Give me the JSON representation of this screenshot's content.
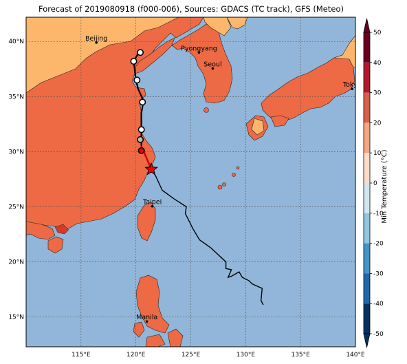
{
  "title": "Forecast of 2019080918 (f000-006), Sources: GDACS (TC track), GFS (Meteo)",
  "map": {
    "lon_range": [
      110,
      140
    ],
    "lat_range": [
      12.3,
      42.2
    ],
    "lon_ticks": [
      "115°E",
      "120°E",
      "125°E",
      "130°E",
      "135°E",
      "140°E"
    ],
    "lat_ticks": [
      "15°N",
      "20°N",
      "25°N",
      "30°N",
      "35°N",
      "40°N"
    ],
    "grid": true
  },
  "cities": [
    {
      "name": "Beijing",
      "lon": 116.4,
      "lat": 39.9
    },
    {
      "name": "Pyongyang",
      "lon": 125.75,
      "lat": 39.0
    },
    {
      "name": "Seoul",
      "lon": 127.0,
      "lat": 37.55
    },
    {
      "name": "Tokyo",
      "lon": 139.7,
      "lat": 35.7
    },
    {
      "name": "Taipei",
      "lon": 121.5,
      "lat": 25.05
    },
    {
      "name": "Manila",
      "lon": 121.0,
      "lat": 14.6
    }
  ],
  "storm": {
    "current_position": {
      "lon": 121.4,
      "lat": 28.4
    },
    "track": [
      [
        131.6,
        16.1
      ],
      [
        131.4,
        16.5
      ],
      [
        131.5,
        17.6
      ],
      [
        130.6,
        18.0
      ],
      [
        130.3,
        18.3
      ],
      [
        129.7,
        18.6
      ],
      [
        129.4,
        19.1
      ],
      [
        128.7,
        18.7
      ],
      [
        128.4,
        18.6
      ],
      [
        128.7,
        19.3
      ],
      [
        128.2,
        19.4
      ],
      [
        128.2,
        20.0
      ],
      [
        126.8,
        21.3
      ],
      [
        125.8,
        22.0
      ],
      [
        125.2,
        23.0
      ],
      [
        124.5,
        24.4
      ],
      [
        124.6,
        25.0
      ],
      [
        123.5,
        25.7
      ],
      [
        122.4,
        26.5
      ],
      [
        121.8,
        27.8
      ],
      [
        121.4,
        28.4
      ]
    ],
    "forecast_track": [
      [
        121.4,
        28.4
      ],
      [
        120.9,
        29.6
      ],
      [
        120.5,
        30.5
      ],
      [
        120.5,
        31.4
      ],
      [
        120.5,
        32.2
      ],
      [
        120.5,
        33.5
      ],
      [
        120.7,
        34.6
      ],
      [
        120.2,
        35.7
      ],
      [
        120.0,
        36.5
      ],
      [
        119.8,
        38.2
      ],
      [
        120.2,
        38.9
      ]
    ],
    "forecast_points": [
      {
        "lon": 120.5,
        "lat": 30.1,
        "kind": "red"
      },
      {
        "lon": 120.4,
        "lat": 31.1,
        "kind": "grey"
      },
      {
        "lon": 120.5,
        "lat": 32.0,
        "kind": "open"
      },
      {
        "lon": 120.6,
        "lat": 34.5,
        "kind": "open"
      },
      {
        "lon": 120.1,
        "lat": 36.5,
        "kind": "open"
      },
      {
        "lon": 119.8,
        "lat": 38.2,
        "kind": "open"
      },
      {
        "lon": 120.4,
        "lat": 39.0,
        "kind": "open"
      }
    ]
  },
  "colorbar": {
    "label": "Min Temperature (°C)",
    "ticks": [
      50,
      40,
      30,
      20,
      10,
      0,
      -10,
      -20,
      -30,
      -40,
      -50
    ],
    "colors": [
      "#67001f",
      "#b2182b",
      "#d6604d",
      "#f4a582",
      "#fddbc7",
      "#f7f7f7",
      "#d1e5f0",
      "#92c5de",
      "#4393c3",
      "#2166ac",
      "#053061"
    ],
    "ocean_color": "#92b6d9",
    "land_colors": {
      "20-30": "#ed6a45",
      "10-20": "#fdb76d",
      "30-40": "#d03b2b"
    }
  }
}
